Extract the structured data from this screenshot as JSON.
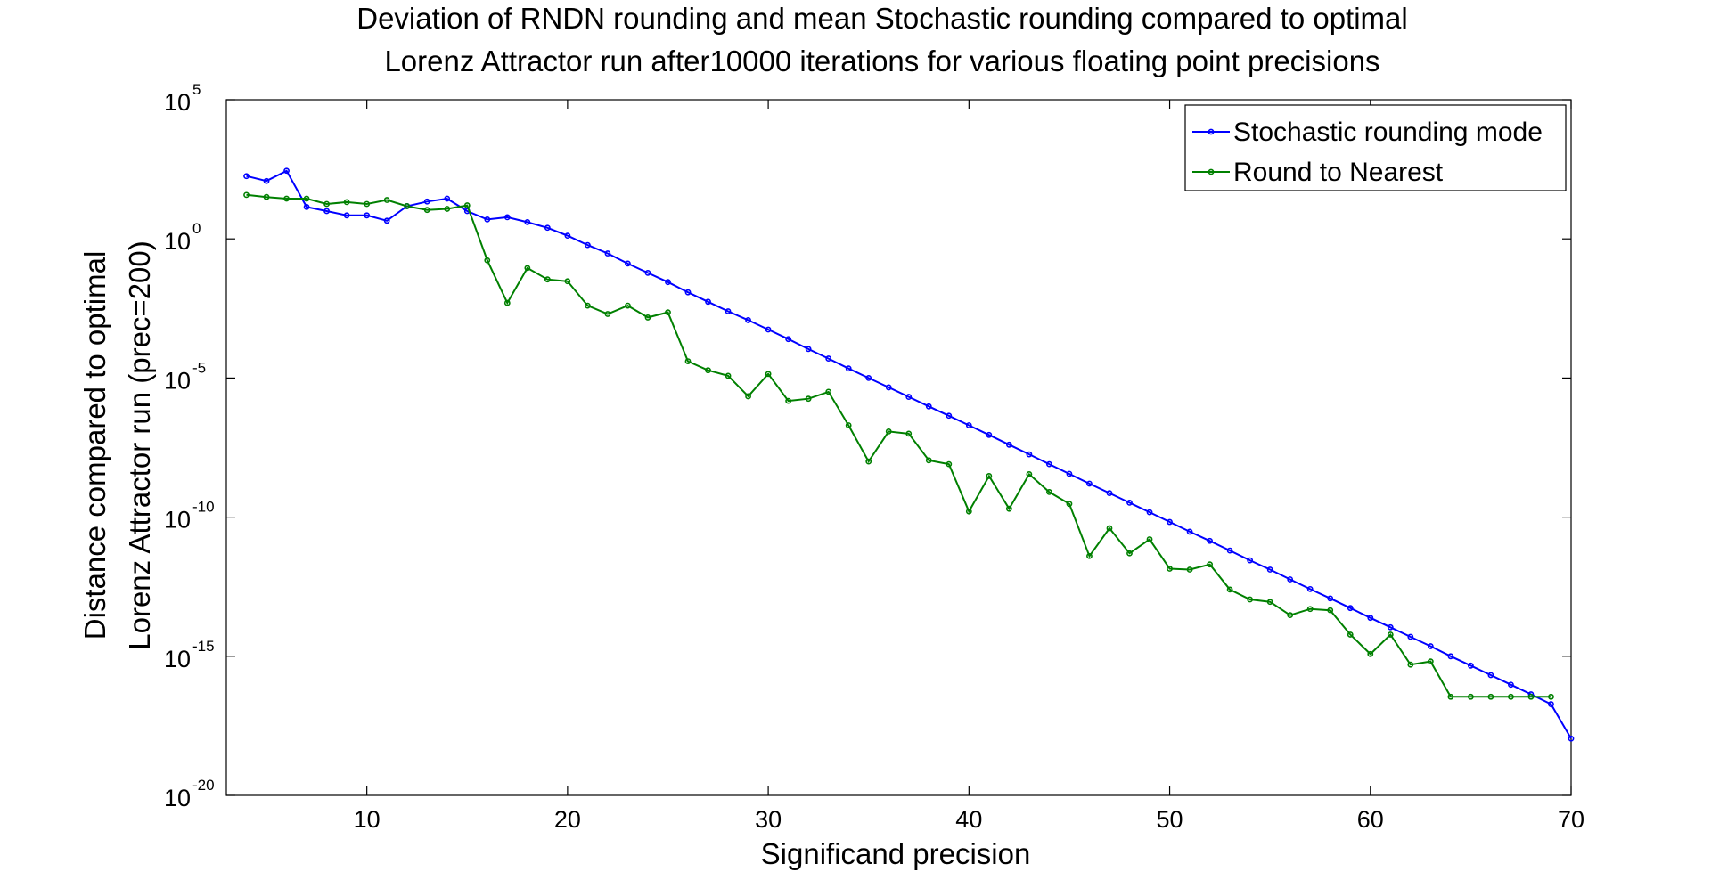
{
  "chart_data": {
    "type": "line",
    "title": "Deviation of RNDN rounding and mean Stochastic rounding compared to optimal",
    "subtitle": "Lorenz Attractor run after10000 iterations for various floating point precisions",
    "xlabel": "Significand precision",
    "ylabel_line1": "Distance compared to optimal",
    "ylabel_line2": "Lorenz Attractor run (prec=200)",
    "xlim": [
      3,
      70
    ],
    "ylim_exp": [
      -20,
      5
    ],
    "yscale": "log",
    "grid": false,
    "legend_position": "top-right",
    "x_ticks": [
      10,
      20,
      30,
      40,
      50,
      60,
      70
    ],
    "y_ticks": [
      {
        "base": "10",
        "exp": "5"
      },
      {
        "base": "10",
        "exp": "0"
      },
      {
        "base": "10",
        "exp": "-5"
      },
      {
        "base": "10",
        "exp": "-10"
      },
      {
        "base": "10",
        "exp": "-15"
      },
      {
        "base": "10",
        "exp": "-20"
      }
    ],
    "series": [
      {
        "name": "Stochastic rounding mode",
        "color": "#0000ff",
        "x": [
          4,
          5,
          6,
          7,
          8,
          9,
          10,
          11,
          12,
          13,
          14,
          15,
          16,
          17,
          18,
          19,
          20,
          21,
          22,
          23,
          24,
          25,
          26,
          27,
          28,
          29,
          30,
          31,
          32,
          33,
          34,
          35,
          36,
          37,
          38,
          39,
          40,
          41,
          42,
          43,
          44,
          45,
          46,
          47,
          48,
          49,
          50,
          51,
          52,
          53,
          54,
          55,
          56,
          57,
          58,
          59,
          60,
          61,
          62,
          63,
          64,
          65,
          66,
          67,
          68,
          69,
          70
        ],
        "y": [
          180.0,
          120.0,
          280.0,
          14.0,
          10.0,
          7.0,
          7.0,
          4.5,
          15.0,
          22.0,
          28.0,
          10.0,
          5.0,
          6.0,
          4.0,
          2.5,
          1.3,
          0.6,
          0.3,
          0.13,
          0.06,
          0.028,
          0.012,
          0.0055,
          0.0025,
          0.0012,
          0.00055,
          0.00025,
          0.00011,
          5e-05,
          2.2e-05,
          1e-05,
          4.6e-06,
          2.1e-06,
          9.5e-07,
          4.4e-07,
          2e-07,
          9e-08,
          4e-08,
          1.8e-08,
          8e-09,
          3.6e-09,
          1.6e-09,
          7.3e-10,
          3.3e-10,
          1.5e-10,
          6.7e-11,
          3e-11,
          1.4e-11,
          6.3e-12,
          2.8e-12,
          1.3e-12,
          5.8e-13,
          2.6e-13,
          1.2e-13,
          5.4e-14,
          2.4e-14,
          1.1e-14,
          5e-15,
          2.3e-15,
          1e-15,
          4.6e-16,
          2.1e-16,
          9.5e-17,
          4.3e-17,
          1.9e-17,
          1.1e-18
        ]
      },
      {
        "name": "Round to Nearest",
        "color": "#008000",
        "x": [
          4,
          5,
          6,
          7,
          8,
          9,
          10,
          11,
          12,
          13,
          14,
          15,
          16,
          17,
          18,
          19,
          20,
          21,
          22,
          23,
          24,
          25,
          26,
          27,
          28,
          29,
          30,
          31,
          32,
          33,
          34,
          35,
          36,
          37,
          38,
          39,
          40,
          41,
          42,
          43,
          44,
          45,
          46,
          47,
          48,
          49,
          50,
          51,
          52,
          53,
          54,
          55,
          56,
          57,
          58,
          59,
          60,
          61,
          62,
          63,
          64,
          65,
          66,
          67,
          68,
          69
        ],
        "y": [
          38.0,
          32.0,
          28.0,
          28.0,
          18.0,
          21.0,
          18.0,
          25.0,
          15.0,
          11.0,
          12.0,
          16.0,
          0.17,
          0.005,
          0.09,
          0.035,
          0.03,
          0.004,
          0.002,
          0.004,
          0.0015,
          0.0023,
          4e-05,
          1.9e-05,
          1.2e-05,
          2.2e-06,
          1.4e-05,
          1.5e-06,
          1.8e-06,
          3.2e-06,
          2e-07,
          1e-08,
          1.2e-07,
          1e-07,
          1.1e-08,
          8e-09,
          1.6e-10,
          3e-09,
          2e-10,
          3.5e-09,
          8e-10,
          3e-10,
          4e-12,
          4e-11,
          5e-12,
          1.6e-11,
          1.4e-12,
          1.3e-12,
          2e-12,
          2.5e-13,
          1.1e-13,
          9e-14,
          3e-14,
          5e-14,
          4.5e-14,
          6e-15,
          1.2e-15,
          6e-15,
          5e-16,
          6.5e-16,
          3.5e-17,
          3.5e-17,
          3.5e-17,
          3.5e-17,
          3.5e-17,
          3.5e-17
        ]
      }
    ]
  }
}
